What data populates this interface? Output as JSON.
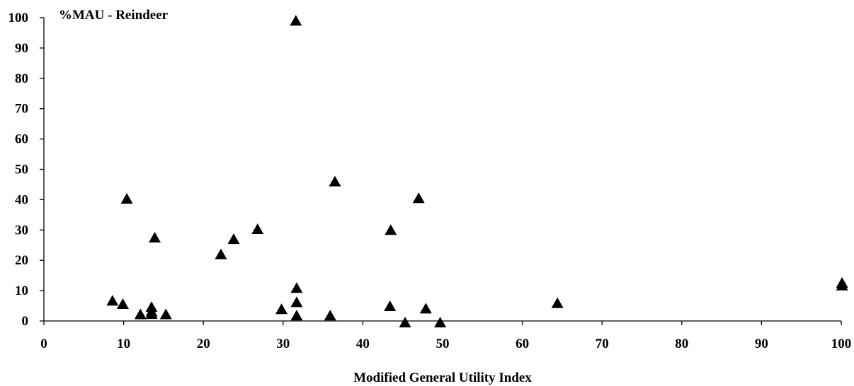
{
  "chart_data": {
    "type": "scatter",
    "title": "",
    "ylabel": "%MAU - Reindeer",
    "xlabel": "Modified General Utility Index",
    "xlim": [
      0,
      100
    ],
    "ylim": [
      0,
      100
    ],
    "x_ticks": [
      0,
      10,
      20,
      30,
      40,
      50,
      60,
      70,
      80,
      90,
      100
    ],
    "y_ticks": [
      0,
      10,
      20,
      30,
      40,
      50,
      60,
      70,
      80,
      90,
      100
    ],
    "grid": false,
    "legend": "none",
    "marker": "triangle",
    "marker_color": "#000000",
    "points": [
      {
        "x": 8.6,
        "y": 6.7
      },
      {
        "x": 9.9,
        "y": 5.6
      },
      {
        "x": 10.4,
        "y": 40.3
      },
      {
        "x": 12.1,
        "y": 2.2
      },
      {
        "x": 13.5,
        "y": 4.6
      },
      {
        "x": 13.5,
        "y": 3.1
      },
      {
        "x": 13.5,
        "y": 2.3
      },
      {
        "x": 13.9,
        "y": 27.5
      },
      {
        "x": 15.3,
        "y": 2.2
      },
      {
        "x": 22.2,
        "y": 22.0
      },
      {
        "x": 23.8,
        "y": 27.0
      },
      {
        "x": 26.8,
        "y": 30.3
      },
      {
        "x": 29.8,
        "y": 3.9
      },
      {
        "x": 31.6,
        "y": 99.0
      },
      {
        "x": 31.7,
        "y": 10.9
      },
      {
        "x": 31.7,
        "y": 6.2
      },
      {
        "x": 31.7,
        "y": 1.8
      },
      {
        "x": 35.9,
        "y": 1.8
      },
      {
        "x": 36.5,
        "y": 46.0
      },
      {
        "x": 43.4,
        "y": 4.9
      },
      {
        "x": 43.5,
        "y": 30.0
      },
      {
        "x": 45.3,
        "y": -0.5
      },
      {
        "x": 47.0,
        "y": 40.5
      },
      {
        "x": 47.9,
        "y": 4.1
      },
      {
        "x": 49.7,
        "y": -0.5
      },
      {
        "x": 64.4,
        "y": 5.9
      },
      {
        "x": 100.1,
        "y": 12.6
      },
      {
        "x": 100.1,
        "y": 11.7
      }
    ]
  }
}
